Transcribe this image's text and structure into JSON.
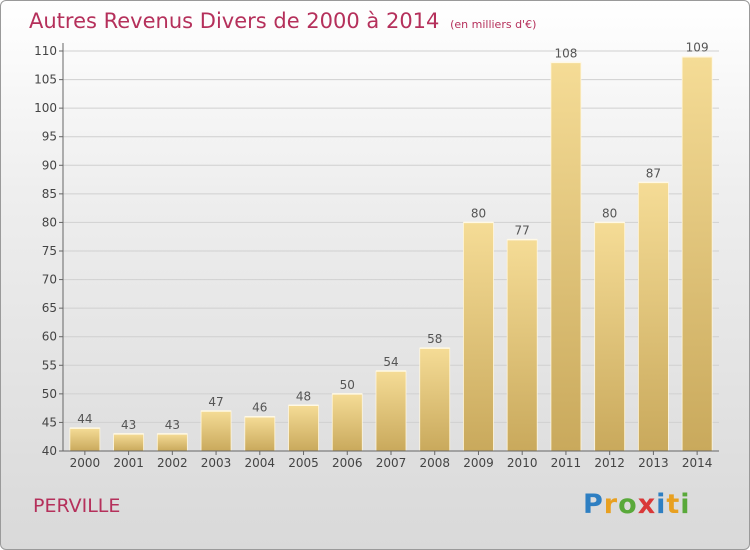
{
  "header": {
    "title": "Autres Revenus Divers de 2000 à 2014",
    "subtitle": "(en milliers d'€)"
  },
  "commune": "PERVILLE",
  "logo": {
    "text": "Proxiti",
    "letters": [
      "P",
      "r",
      "o",
      "x",
      "i",
      "t",
      "i"
    ],
    "colors": [
      "#2e7fc2",
      "#e8a020",
      "#59a93a",
      "#d93838",
      "#2e7fc2",
      "#e8a020",
      "#59a93a"
    ]
  },
  "chart_data": {
    "type": "bar",
    "categories": [
      "2000",
      "2001",
      "2002",
      "2003",
      "2004",
      "2005",
      "2006",
      "2007",
      "2008",
      "2009",
      "2010",
      "2011",
      "2012",
      "2013",
      "2014"
    ],
    "values": [
      44,
      43,
      43,
      47,
      46,
      48,
      50,
      54,
      58,
      80,
      77,
      108,
      80,
      87,
      109
    ],
    "title": "Autres Revenus Divers de 2000 à 2014",
    "subtitle": "(en milliers d'€)",
    "xlabel": "",
    "ylabel": "",
    "ylim": [
      40,
      110
    ],
    "yticks": [
      40,
      45,
      50,
      55,
      60,
      65,
      70,
      75,
      80,
      85,
      90,
      95,
      100,
      105,
      110
    ],
    "grid": true,
    "bar_color": "#e6c77a",
    "label_color": "#555555"
  }
}
